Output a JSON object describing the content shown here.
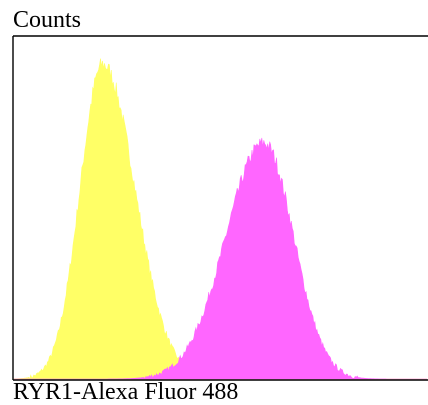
{
  "chart_data": {
    "type": "area",
    "title": "",
    "ylabel": "Counts",
    "xlabel": "RYR1-Alexa Fluor 488",
    "xlim": [
      0,
      1
    ],
    "ylim": [
      0,
      1
    ],
    "grid": false,
    "legend": "none",
    "series": [
      {
        "color": "#ffff66",
        "peaks": [
          {
            "center": 0.215,
            "height": 0.92,
            "sigma_left": 0.055,
            "sigma_right": 0.078
          }
        ]
      },
      {
        "color": "#ff66ff",
        "peaks": [
          {
            "center": 0.605,
            "height": 0.69,
            "sigma_left": 0.092,
            "sigma_right": 0.072
          }
        ]
      }
    ]
  }
}
